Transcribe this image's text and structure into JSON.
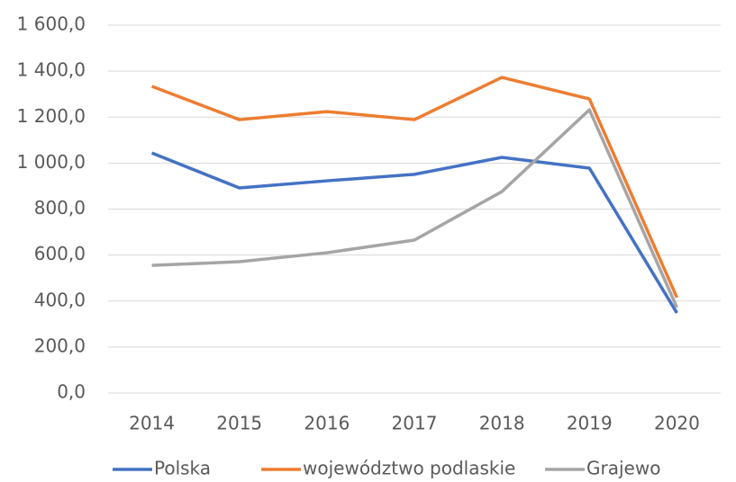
{
  "chart_data": {
    "type": "line",
    "categories": [
      "2014",
      "2015",
      "2016",
      "2017",
      "2018",
      "2019",
      "2020"
    ],
    "series": [
      {
        "name": "Polska",
        "color": "#4472c4",
        "values": [
          1044,
          892,
          923,
          951,
          1025,
          978,
          348
        ]
      },
      {
        "name": "województwo podlaskie",
        "color": "#ed7d31",
        "values": [
          1334,
          1189,
          1224,
          1189,
          1373,
          1279,
          415
        ]
      },
      {
        "name": "Grajewo",
        "color": "#a5a5a5",
        "values": [
          555,
          571,
          610,
          665,
          876,
          1232,
          372
        ]
      }
    ],
    "ylim": [
      0,
      1600
    ],
    "yticks": [
      {
        "value": 0,
        "label": "0,0"
      },
      {
        "value": 200,
        "label": "200,0"
      },
      {
        "value": 400,
        "label": "400,0"
      },
      {
        "value": 600,
        "label": "600,0"
      },
      {
        "value": 800,
        "label": "800,0"
      },
      {
        "value": 1000,
        "label": "1 000,0"
      },
      {
        "value": 1200,
        "label": "1 200,0"
      },
      {
        "value": 1400,
        "label": "1 400,0"
      },
      {
        "value": 1600,
        "label": "1 600,0"
      }
    ],
    "grid": true,
    "legend": "bottom"
  }
}
